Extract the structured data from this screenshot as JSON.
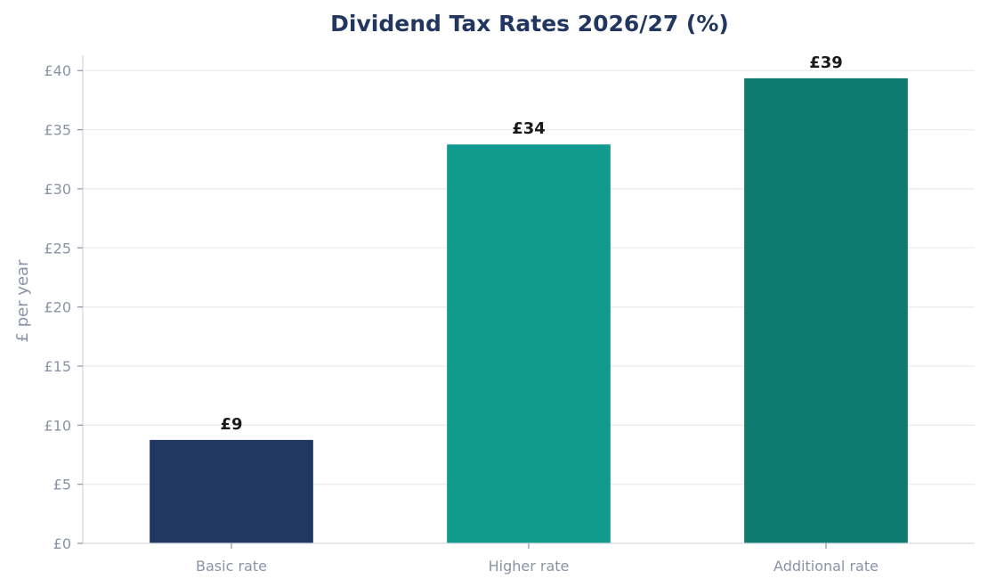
{
  "chart_data": {
    "type": "bar",
    "title": "Dividend Tax Rates 2026/27 (%)",
    "xlabel": "",
    "ylabel": "£ per year",
    "categories": [
      "Basic rate",
      "Higher rate",
      "Additional rate"
    ],
    "values": [
      8.75,
      33.75,
      39.35
    ],
    "data_labels": [
      "£9",
      "£34",
      "£39"
    ],
    "colors": [
      "#213862",
      "#119b8e",
      "#0e7a70"
    ],
    "ylim": [
      0,
      41.3
    ],
    "yticks": [
      0,
      5,
      10,
      15,
      20,
      25,
      30,
      35,
      40
    ],
    "ytick_labels": [
      "£0",
      "£5",
      "£10",
      "£15",
      "£20",
      "£25",
      "£30",
      "£35",
      "£40"
    ],
    "grid": "horizontal",
    "legend": "none"
  }
}
